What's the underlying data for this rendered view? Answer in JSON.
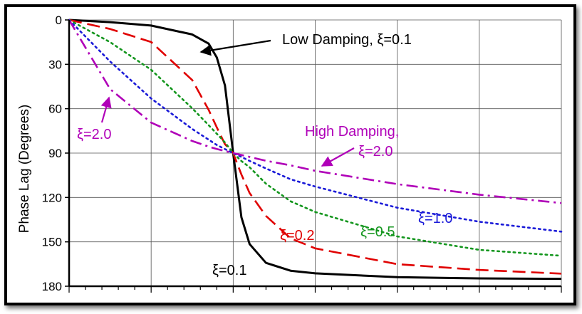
{
  "chart_data": {
    "type": "line",
    "ylabel": "Phase Lag (Degrees)",
    "ylim": [
      180,
      0
    ],
    "y_ticks": [
      "0",
      "30",
      "60",
      "90",
      "120",
      "150",
      "180"
    ],
    "xlim": [
      0,
      3
    ],
    "grid": true,
    "series": [
      {
        "zeta": 0.1,
        "color": "#000000",
        "style": "solid",
        "x": [
          0,
          0.25,
          0.5,
          0.75,
          0.85,
          0.9,
          0.95,
          1.0,
          1.05,
          1.1,
          1.2,
          1.35,
          1.5,
          2.0,
          2.5,
          3.0
        ],
        "y": [
          0,
          1.5,
          3.8,
          9.8,
          16.0,
          25.3,
          44.3,
          90,
          133.4,
          151.5,
          164.2,
          169.5,
          171.3,
          173.9,
          174.7,
          175.0
        ]
      },
      {
        "zeta": 0.2,
        "color": "#e00000",
        "style": "dashed",
        "x": [
          0,
          0.25,
          0.5,
          0.75,
          0.85,
          0.9,
          0.95,
          1.0,
          1.05,
          1.1,
          1.2,
          1.35,
          1.5,
          2.0,
          2.5,
          3.0
        ],
        "y": [
          0,
          6.1,
          14.9,
          40.6,
          60.7,
          72.6,
          84.0,
          90,
          104.5,
          117.0,
          132.5,
          147.6,
          154.4,
          165.1,
          169.0,
          171.5
        ]
      },
      {
        "zeta": 0.5,
        "color": "#14961e",
        "style": "dotted",
        "x": [
          0,
          0.25,
          0.5,
          0.75,
          0.85,
          0.9,
          0.95,
          1.0,
          1.05,
          1.1,
          1.2,
          1.35,
          1.5,
          2.0,
          2.5,
          3.0
        ],
        "y": [
          0,
          15.0,
          33.7,
          59.7,
          71.1,
          76.9,
          82.8,
          90,
          95.4,
          99.6,
          110.7,
          122.6,
          129.8,
          146.3,
          155.4,
          159.4
        ]
      },
      {
        "zeta": 1.0,
        "color": "#1a1ad8",
        "style": "dotted",
        "x": [
          0,
          0.25,
          0.5,
          0.75,
          0.85,
          0.9,
          0.95,
          1.0,
          1.05,
          1.1,
          1.2,
          1.35,
          1.5,
          2.0,
          2.5,
          3.0
        ],
        "y": [
          0,
          28.1,
          53.1,
          73.7,
          80.9,
          84.5,
          87.3,
          90,
          92.6,
          95.3,
          100.4,
          107.7,
          112.6,
          126.9,
          136.4,
          143.1
        ]
      },
      {
        "zeta": 2.0,
        "color": "#b000b8",
        "style": "dashdot",
        "x": [
          0,
          0.25,
          0.5,
          0.75,
          0.85,
          0.9,
          0.95,
          1.0,
          1.05,
          1.1,
          1.2,
          1.35,
          1.5,
          2.0,
          2.5,
          3.0
        ],
        "y": [
          0,
          46.8,
          69.4,
          81.8,
          85.6,
          87.2,
          88.6,
          90,
          91.3,
          92.6,
          95.2,
          98.3,
          102.0,
          111.0,
          118.1,
          123.8
        ]
      }
    ],
    "annotations": {
      "low_damping": "Low Damping, ξ=0.1",
      "high_damping_1": "High Damping,",
      "high_damping_2": "ξ=2.0",
      "xi_2_left": "ξ=2.0",
      "xi_1": "ξ=1.0",
      "xi_05": "ξ=0.5",
      "xi_02": "ξ=0.2",
      "xi_01": "ξ=0.1"
    }
  }
}
